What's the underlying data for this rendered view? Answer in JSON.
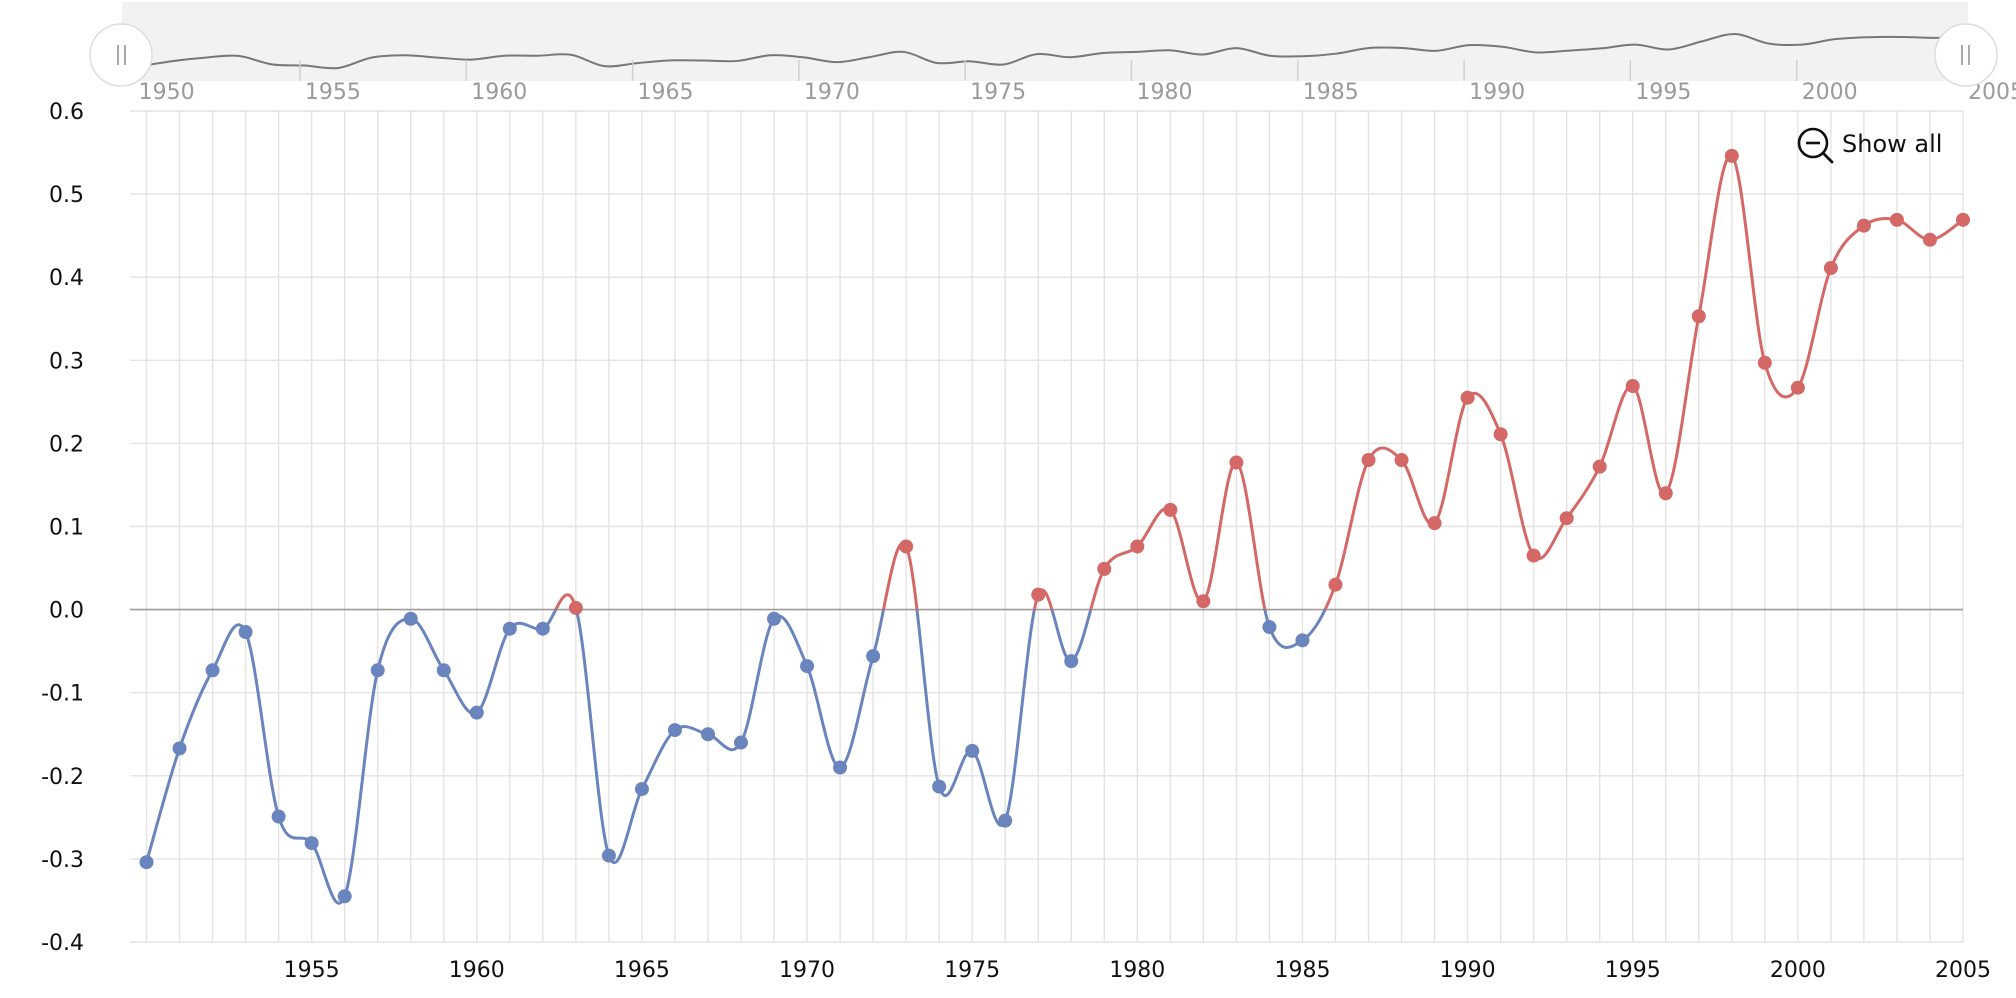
{
  "show_all_label": "Show all",
  "zoom_icon": "zoom-out-icon",
  "colors": {
    "below": "#6a84bd",
    "above": "#d36866",
    "grid": "#e3e3e3",
    "zero": "#9c9c9c",
    "scrollbar_bg": "#f2f2f2",
    "scrollbar_line": "#777777"
  },
  "chart_data": {
    "type": "line",
    "title": "",
    "xlabel": "",
    "ylabel": "",
    "ylim": [
      -0.4,
      0.6
    ],
    "xlim": [
      1949.5,
      2005
    ],
    "y_ticks": [
      "-0.4",
      "-0.3",
      "-0.2",
      "-0.1",
      "0.0",
      "0.1",
      "0.2",
      "0.3",
      "0.4",
      "0.5",
      "0.6"
    ],
    "x_ticks": [
      "1955",
      "1960",
      "1965",
      "1970",
      "1975",
      "1980",
      "1985",
      "1990",
      "1995",
      "2000",
      "2005"
    ],
    "scrollbar_ticks": [
      "1950",
      "1955",
      "1960",
      "1965",
      "1970",
      "1975",
      "1980",
      "1985",
      "1990",
      "1995",
      "2000",
      "2005"
    ],
    "threshold": 0,
    "grid": true,
    "curve": "smooth",
    "x": [
      1950,
      1951,
      1952,
      1953,
      1954,
      1955,
      1956,
      1957,
      1958,
      1959,
      1960,
      1961,
      1962,
      1963,
      1964,
      1965,
      1966,
      1967,
      1968,
      1969,
      1970,
      1971,
      1972,
      1973,
      1974,
      1975,
      1976,
      1977,
      1978,
      1979,
      1980,
      1981,
      1982,
      1983,
      1984,
      1985,
      1986,
      1987,
      1988,
      1989,
      1990,
      1991,
      1992,
      1993,
      1994,
      1995,
      1996,
      1997,
      1998,
      1999,
      2000,
      2001,
      2002,
      2003,
      2004,
      2005
    ],
    "y": [
      -0.304,
      -0.167,
      -0.073,
      -0.027,
      -0.249,
      -0.281,
      -0.345,
      -0.073,
      -0.011,
      -0.073,
      -0.124,
      -0.023,
      -0.023,
      0.002,
      -0.296,
      -0.216,
      -0.145,
      -0.15,
      -0.16,
      -0.011,
      -0.068,
      -0.19,
      -0.056,
      0.076,
      -0.213,
      -0.17,
      -0.254,
      0.018,
      -0.062,
      0.049,
      0.076,
      0.12,
      0.01,
      0.177,
      -0.021,
      -0.037,
      0.03,
      0.18,
      0.18,
      0.104,
      0.255,
      0.211,
      0.065,
      0.11,
      0.172,
      0.269,
      0.14,
      0.353,
      0.546,
      0.297,
      0.267,
      0.411,
      0.462,
      0.469,
      0.445,
      0.469
    ]
  }
}
